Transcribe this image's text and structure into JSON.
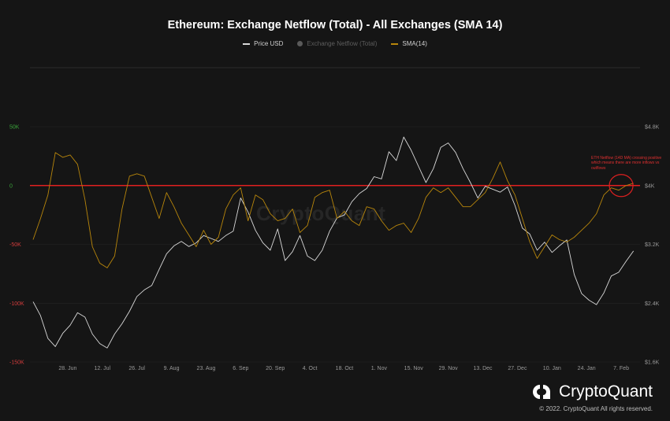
{
  "chart_data": {
    "type": "line",
    "title": "Ethereum: Exchange Netflow (Total) - All Exchanges (SMA 14)",
    "legend": [
      {
        "name": "Price USD",
        "color": "#d9d9d9",
        "active": true
      },
      {
        "name": "Exchange Netflow (Total)",
        "color": "#5a5a5a",
        "active": false
      },
      {
        "name": "SMA(14)",
        "color": "#b8860b",
        "active": true
      }
    ],
    "left_axis": {
      "ticks": [
        "50K",
        "0",
        "-50K",
        "-100K",
        "-150K"
      ],
      "values": [
        50000,
        0,
        -50000,
        -100000,
        -150000
      ],
      "range": [
        -150000,
        50000
      ]
    },
    "right_axis": {
      "ticks": [
        "$4.8K",
        "$4K",
        "$3.2K",
        "$2.4K",
        "$1.6K"
      ],
      "values": [
        4800,
        4000,
        3200,
        2400,
        1600
      ],
      "range": [
        1600,
        4800
      ]
    },
    "x_ticks": [
      "28. Jun",
      "12. Jul",
      "26. Jul",
      "9. Aug",
      "23. Aug",
      "6. Sep",
      "20. Sep",
      "4. Oct",
      "18. Oct",
      "1. Nov",
      "15. Nov",
      "29. Nov",
      "13. Dec",
      "27. Dec",
      "10. Jan",
      "24. Jan",
      "7. Feb"
    ],
    "x_tick_days": [
      14,
      28,
      42,
      56,
      70,
      84,
      98,
      112,
      126,
      140,
      154,
      168,
      182,
      196,
      210,
      224,
      238
    ],
    "x_range_days": [
      0,
      245
    ],
    "reference_line": {
      "value": 0,
      "color": "#e02020"
    },
    "annotation": "ETH Netflow (14D MA) crossing positive which means there are more inflows vs outflows",
    "annotation_highlight_day": 238,
    "series": [
      {
        "name": "Price USD",
        "axis": "right",
        "color": "#d9d9d9",
        "x": [
          0,
          3,
          6,
          9,
          12,
          15,
          18,
          21,
          24,
          27,
          30,
          33,
          36,
          39,
          42,
          45,
          48,
          51,
          54,
          57,
          60,
          63,
          66,
          69,
          72,
          75,
          78,
          81,
          84,
          87,
          90,
          93,
          96,
          99,
          102,
          105,
          108,
          111,
          114,
          117,
          120,
          123,
          126,
          129,
          132,
          135,
          138,
          141,
          144,
          147,
          150,
          153,
          156,
          159,
          162,
          165,
          168,
          171,
          174,
          177,
          180,
          183,
          186,
          189,
          192,
          195,
          198,
          201,
          204,
          207,
          210,
          213,
          216,
          219,
          222,
          225,
          228,
          231,
          234,
          237,
          240,
          243
        ],
        "y": [
          2420,
          2230,
          1920,
          1810,
          1990,
          2100,
          2270,
          2210,
          1980,
          1850,
          1790,
          1980,
          2120,
          2290,
          2490,
          2580,
          2640,
          2860,
          3070,
          3180,
          3240,
          3170,
          3220,
          3320,
          3280,
          3240,
          3320,
          3380,
          3830,
          3640,
          3390,
          3220,
          3120,
          3410,
          2980,
          3100,
          3320,
          3040,
          2980,
          3120,
          3380,
          3560,
          3600,
          3780,
          3890,
          3960,
          4120,
          4090,
          4460,
          4340,
          4660,
          4480,
          4260,
          4040,
          4230,
          4520,
          4580,
          4450,
          4230,
          4040,
          3830,
          3990,
          3950,
          3910,
          3980,
          3730,
          3420,
          3340,
          3120,
          3230,
          3090,
          3180,
          3260,
          2790,
          2530,
          2440,
          2380,
          2540,
          2770,
          2820,
          2970,
          3110
        ]
      },
      {
        "name": "SMA(14)",
        "axis": "left",
        "color": "#b8860b",
        "x": [
          0,
          3,
          6,
          9,
          12,
          15,
          18,
          21,
          24,
          27,
          30,
          33,
          36,
          39,
          42,
          45,
          48,
          51,
          54,
          57,
          60,
          63,
          66,
          69,
          72,
          75,
          78,
          81,
          84,
          87,
          90,
          93,
          96,
          99,
          102,
          105,
          108,
          111,
          114,
          117,
          120,
          123,
          126,
          129,
          132,
          135,
          138,
          141,
          144,
          147,
          150,
          153,
          156,
          159,
          162,
          165,
          168,
          171,
          174,
          177,
          180,
          183,
          186,
          189,
          192,
          195,
          198,
          201,
          204,
          207,
          210,
          213,
          216,
          219,
          222,
          225,
          228,
          231,
          234,
          237,
          240,
          243
        ],
        "y": [
          -46000,
          -28000,
          -8000,
          28000,
          24000,
          26000,
          18000,
          -12000,
          -52000,
          -66000,
          -70000,
          -60000,
          -20000,
          8000,
          10000,
          8000,
          -10000,
          -28000,
          -6000,
          -18000,
          -32000,
          -42000,
          -52000,
          -38000,
          -50000,
          -44000,
          -20000,
          -8000,
          -2000,
          -30000,
          -8000,
          -12000,
          -24000,
          -30000,
          -28000,
          -20000,
          -40000,
          -34000,
          -10000,
          -6000,
          -4000,
          -28000,
          -22000,
          -30000,
          -34000,
          -18000,
          -20000,
          -30000,
          -38000,
          -34000,
          -32000,
          -40000,
          -28000,
          -10000,
          -2000,
          -6000,
          -2000,
          -10000,
          -18000,
          -18000,
          -12000,
          -6000,
          6000,
          20000,
          4000,
          -8000,
          -28000,
          -48000,
          -62000,
          -52000,
          -42000,
          -46000,
          -48000,
          -44000,
          -38000,
          -32000,
          -24000,
          -8000,
          -2000,
          -4000,
          0,
          2000
        ]
      }
    ]
  },
  "watermark": "CryptoQuant",
  "brand": {
    "name": "CryptoQuant",
    "copyright": "© 2022. CryptoQuant All rights reserved."
  }
}
